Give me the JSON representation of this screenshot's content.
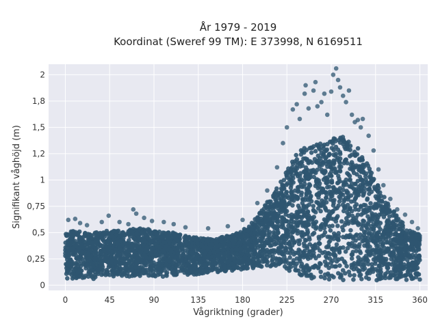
{
  "chart_data": {
    "type": "scatter",
    "title_lines": [
      "År 1979 - 2019",
      "Koordinat (Sweref 99 TM): E 373998, N 6169511"
    ],
    "xlabel": "Vågriktning (grader)",
    "ylabel": "Signifikant våghöjd (m)",
    "xlim": [
      -17,
      368
    ],
    "ylim": [
      -0.05,
      2.1
    ],
    "xticks": [
      0,
      45,
      90,
      135,
      180,
      225,
      270,
      315,
      360
    ],
    "xtick_labels": [
      "0",
      "45",
      "90",
      "135",
      "180",
      "225",
      "270",
      "315",
      "360"
    ],
    "yticks": [
      0,
      0.25,
      0.5,
      0.75,
      1,
      1.25,
      1.5,
      1.75,
      2
    ],
    "ytick_labels": [
      "0",
      "0,25",
      "0,5",
      "0,75",
      "1",
      "1,2",
      "1,5",
      "1,8",
      "2"
    ],
    "grid": true,
    "colors": {
      "marker": "#2f5570",
      "plot_bg": "#e8e9f1",
      "grid": "#ffffff"
    },
    "envelope": {
      "direction": [
        0,
        10,
        20,
        30,
        45,
        60,
        70,
        80,
        90,
        100,
        110,
        120,
        135,
        150,
        160,
        170,
        180,
        190,
        200,
        210,
        220,
        225,
        230,
        240,
        250,
        260,
        270,
        280,
        290,
        300,
        310,
        315,
        320,
        330,
        340,
        350,
        360
      ],
      "dense_max": [
        0.5,
        0.52,
        0.5,
        0.5,
        0.52,
        0.52,
        0.54,
        0.54,
        0.52,
        0.5,
        0.5,
        0.47,
        0.45,
        0.44,
        0.46,
        0.48,
        0.52,
        0.6,
        0.72,
        0.86,
        1.0,
        1.1,
        1.2,
        1.3,
        1.32,
        1.35,
        1.4,
        1.42,
        1.38,
        1.28,
        1.1,
        1.0,
        0.9,
        0.75,
        0.62,
        0.52,
        0.48
      ],
      "dense_min": [
        0.05,
        0.05,
        0.06,
        0.06,
        0.07,
        0.07,
        0.08,
        0.08,
        0.08,
        0.08,
        0.09,
        0.1,
        0.1,
        0.12,
        0.13,
        0.14,
        0.15,
        0.16,
        0.17,
        0.18,
        0.17,
        0.15,
        0.12,
        0.08,
        0.06,
        0.05,
        0.05,
        0.05,
        0.04,
        0.04,
        0.04,
        0.04,
        0.04,
        0.05,
        0.05,
        0.05,
        0.05
      ]
    },
    "outliers": [
      {
        "x": 3,
        "y": 0.62
      },
      {
        "x": 10,
        "y": 0.63
      },
      {
        "x": 15,
        "y": 0.59
      },
      {
        "x": 22,
        "y": 0.57
      },
      {
        "x": 37,
        "y": 0.6
      },
      {
        "x": 44,
        "y": 0.66
      },
      {
        "x": 55,
        "y": 0.6
      },
      {
        "x": 64,
        "y": 0.58
      },
      {
        "x": 69,
        "y": 0.72
      },
      {
        "x": 72,
        "y": 0.68
      },
      {
        "x": 80,
        "y": 0.64
      },
      {
        "x": 88,
        "y": 0.61
      },
      {
        "x": 100,
        "y": 0.6
      },
      {
        "x": 110,
        "y": 0.58
      },
      {
        "x": 122,
        "y": 0.55
      },
      {
        "x": 145,
        "y": 0.54
      },
      {
        "x": 165,
        "y": 0.56
      },
      {
        "x": 180,
        "y": 0.62
      },
      {
        "x": 195,
        "y": 0.78
      },
      {
        "x": 205,
        "y": 0.9
      },
      {
        "x": 215,
        "y": 1.12
      },
      {
        "x": 221,
        "y": 1.35
      },
      {
        "x": 225,
        "y": 1.5
      },
      {
        "x": 231,
        "y": 1.67
      },
      {
        "x": 235,
        "y": 1.72
      },
      {
        "x": 238,
        "y": 1.58
      },
      {
        "x": 243,
        "y": 1.82
      },
      {
        "x": 244,
        "y": 1.9
      },
      {
        "x": 247,
        "y": 1.68
      },
      {
        "x": 252,
        "y": 1.85
      },
      {
        "x": 254,
        "y": 1.93
      },
      {
        "x": 256,
        "y": 1.7
      },
      {
        "x": 260,
        "y": 1.74
      },
      {
        "x": 263,
        "y": 1.82
      },
      {
        "x": 266,
        "y": 1.62
      },
      {
        "x": 270,
        "y": 1.84
      },
      {
        "x": 272,
        "y": 2.0
      },
      {
        "x": 275,
        "y": 2.06
      },
      {
        "x": 277,
        "y": 1.95
      },
      {
        "x": 279,
        "y": 1.88
      },
      {
        "x": 282,
        "y": 1.8
      },
      {
        "x": 285,
        "y": 1.74
      },
      {
        "x": 288,
        "y": 1.85
      },
      {
        "x": 291,
        "y": 1.62
      },
      {
        "x": 294,
        "y": 1.55
      },
      {
        "x": 297,
        "y": 1.57
      },
      {
        "x": 300,
        "y": 1.5
      },
      {
        "x": 302,
        "y": 1.58
      },
      {
        "x": 308,
        "y": 1.42
      },
      {
        "x": 313,
        "y": 1.28
      },
      {
        "x": 318,
        "y": 1.1
      },
      {
        "x": 323,
        "y": 0.95
      },
      {
        "x": 330,
        "y": 0.82
      },
      {
        "x": 337,
        "y": 0.72
      },
      {
        "x": 345,
        "y": 0.67
      },
      {
        "x": 352,
        "y": 0.6
      },
      {
        "x": 358,
        "y": 0.54
      }
    ]
  }
}
